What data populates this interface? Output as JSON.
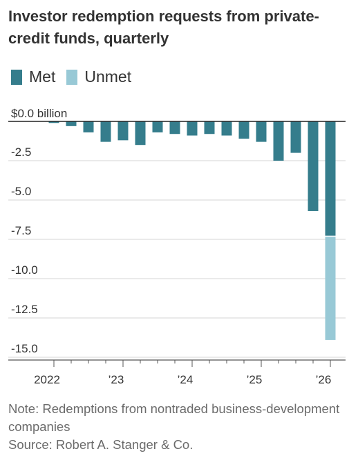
{
  "header": {
    "title": "Investor redemption requests from private-credit funds, quarterly"
  },
  "legend": [
    {
      "label": "Met",
      "color": "#357d8c"
    },
    {
      "label": "Unmet",
      "color": "#98c9d6"
    }
  ],
  "chart_data": {
    "type": "bar",
    "stacked": true,
    "categories": [
      "2022 Q1",
      "2022 Q2",
      "2022 Q3",
      "2022 Q4",
      "2023 Q1",
      "2023 Q2",
      "2023 Q3",
      "2023 Q4",
      "2024 Q1",
      "2024 Q2",
      "2024 Q3",
      "2024 Q4",
      "2025 Q1",
      "2025 Q2",
      "2025 Q3",
      "2025 Q4",
      "2026 Q1"
    ],
    "series": [
      {
        "name": "Met",
        "color": "#357d8c",
        "values": [
          -0.1,
          -0.3,
          -0.7,
          -1.3,
          -1.2,
          -1.5,
          -0.7,
          -0.8,
          -0.9,
          -0.8,
          -0.9,
          -1.1,
          -1.3,
          -2.5,
          -2.0,
          -5.7,
          -7.3
        ]
      },
      {
        "name": "Unmet",
        "color": "#98c9d6",
        "values": [
          0,
          0,
          0,
          0,
          0,
          0,
          0,
          0,
          0,
          0,
          0,
          0,
          0,
          0,
          0,
          0,
          -6.6
        ]
      }
    ],
    "y_ticks": [
      "$0.0 billion",
      "-2.5",
      "-5.0",
      "-7.5",
      "-10.0",
      "-12.5",
      "-15.0"
    ],
    "y_tick_values": [
      0,
      -2.5,
      -5,
      -7.5,
      -10,
      -12.5,
      -15
    ],
    "x_tick_labels": [
      "2022",
      "’23",
      "’24",
      "’25",
      "’26"
    ],
    "x_tick_category_index": [
      0,
      4,
      8,
      12,
      16
    ],
    "ylim": [
      -15,
      0
    ],
    "grid": true,
    "legend_position": "top-left"
  },
  "notes": {
    "note": "Note: Redemptions from nontraded business-development companies",
    "source": "Source: Robert A. Stanger & Co."
  }
}
